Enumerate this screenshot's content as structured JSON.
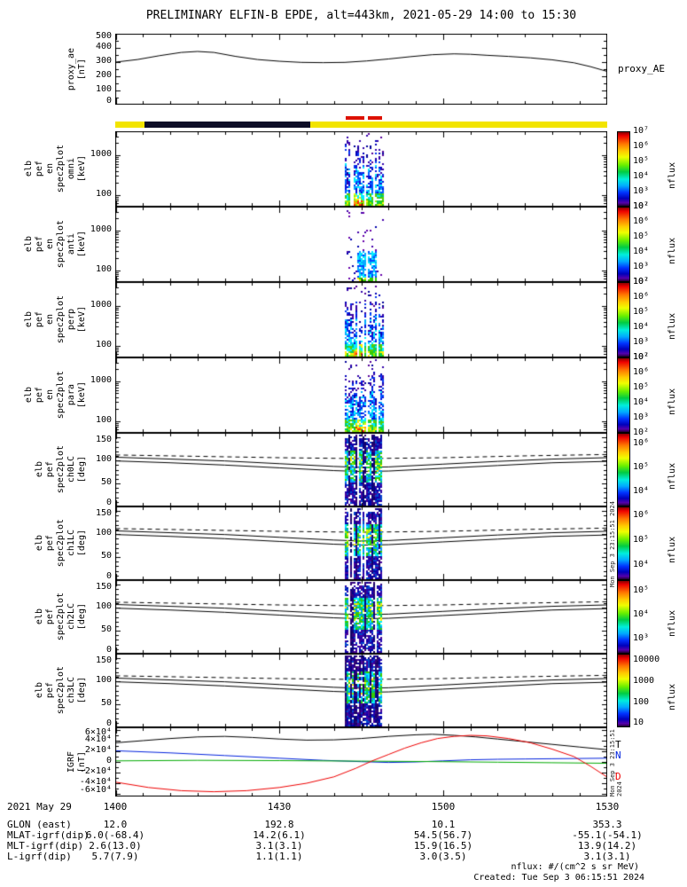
{
  "title": "PRELIMINARY ELFIN-B EPDE, alt=443km, 2021-05-29 14:00 to 15:30",
  "footer": {
    "nflux_units": "nflux: #/(cm^2 s sr MeV)",
    "created": "Created: Tue Sep  3 06:15:51 2024"
  },
  "side_timestamp": "Mon Sep  3 23:15:51 2024",
  "colors": {
    "sunlight": "#f2e400",
    "eclipse": "#0d0d26",
    "science_zone": "#dd1100",
    "axis": "#000000"
  },
  "status_bar": {
    "eclipse_start_min": 5.4,
    "eclipse_end_min": 35.7,
    "science_zones": [
      [
        42.2,
        45.6
      ],
      [
        46.2,
        48.8
      ]
    ]
  },
  "x_axis": {
    "date_label": "2021 May 29",
    "tick_labels": [
      "1400",
      "1430",
      "1500",
      "1530"
    ],
    "tick_minutes": [
      0,
      30,
      60,
      90
    ],
    "minutes_range": [
      0,
      90
    ]
  },
  "var_labels": {
    "rows": [
      {
        "label": "GLON (east)",
        "values": [
          "12.0",
          "192.8",
          "10.1",
          "353.3"
        ]
      },
      {
        "label": "MLAT-igrf(dip)",
        "values": [
          "6.0(-68.4)",
          "14.2(6.1)",
          "54.5(56.7)",
          "-55.1(-54.1)"
        ]
      },
      {
        "label": "MLT-igrf(dip)",
        "values": [
          "2.6(13.0)",
          "3.1(3.1)",
          "15.9(16.5)",
          "13.9(14.2)"
        ]
      },
      {
        "label": "L-igrf(dip)",
        "values": [
          "5.7(7.9)",
          "1.1(1.1)",
          "3.0(3.5)",
          "3.1(3.1)"
        ]
      }
    ]
  },
  "pitch_lines": {
    "dashed": {
      "x": [
        0,
        15,
        30,
        45,
        60,
        75,
        90
      ],
      "y": [
        112,
        109,
        106,
        104,
        106,
        110,
        113
      ]
    },
    "solid_upper": {
      "x": [
        0,
        10,
        20,
        30,
        40,
        45,
        50,
        60,
        70,
        80,
        90
      ],
      "y": [
        107,
        103,
        99,
        93,
        87,
        85,
        86,
        92,
        98,
        103,
        106
      ]
    },
    "solid_lower": {
      "x": [
        0,
        10,
        20,
        30,
        40,
        45,
        50,
        60,
        70,
        80,
        90
      ],
      "y": [
        99,
        95,
        90,
        84,
        78,
        76,
        77,
        83,
        89,
        95,
        98
      ]
    }
  },
  "chart_data": [
    {
      "id": "proxy_ae",
      "type": "line",
      "left_label": [
        "proxy_ae",
        "[nT]"
      ],
      "right_label": "proxy_AE",
      "yscale": "lin",
      "ylim": [
        0,
        500
      ],
      "yticks": [
        {
          "v": 500,
          "t": "500"
        },
        {
          "v": 400,
          "t": "400"
        },
        {
          "v": 300,
          "t": "300"
        },
        {
          "v": 200,
          "t": "200"
        },
        {
          "v": 100,
          "t": "100"
        },
        {
          "v": 0,
          "t": "0"
        }
      ],
      "yminor": [
        450,
        350,
        250,
        150,
        50
      ],
      "series": [
        {
          "name": "proxy_AE",
          "color": "#000000",
          "x": [
            0,
            4,
            8,
            12,
            15,
            18,
            22,
            26,
            30,
            34,
            38,
            42,
            46,
            50,
            54,
            58,
            62,
            65,
            68,
            72,
            76,
            80,
            84,
            87,
            90
          ],
          "y": [
            300,
            318,
            345,
            368,
            375,
            368,
            340,
            318,
            306,
            298,
            296,
            298,
            308,
            322,
            338,
            352,
            358,
            355,
            348,
            340,
            330,
            316,
            295,
            268,
            235
          ]
        }
      ]
    },
    {
      "id": "omni",
      "type": "energy_spec",
      "left_label": [
        "elb",
        "pef",
        "en",
        "spec2plot",
        "omni",
        "[keV]"
      ],
      "yscale": "log",
      "ylim": [
        50,
        4000
      ],
      "yticks": [
        {
          "v": 1000,
          "t": "1000"
        },
        {
          "v": 100,
          "t": "100"
        }
      ],
      "yminor": [
        60,
        70,
        80,
        90,
        200,
        300,
        400,
        500,
        600,
        700,
        800,
        900,
        2000,
        3000
      ],
      "colorbar": {
        "label": "nflux",
        "ticks": [
          "10⁷",
          "10⁶",
          "10⁵",
          "10⁴",
          "10³",
          "10²"
        ],
        "fracs": [
          0.0,
          0.2,
          0.4,
          0.6,
          0.8,
          1.0
        ]
      },
      "burst": {
        "style": "strong",
        "start_min": 42.0,
        "end_min": 49.0,
        "core_min": 44.3
      }
    },
    {
      "id": "anti",
      "type": "energy_spec",
      "left_label": [
        "elb",
        "pef",
        "en",
        "spec2plot",
        "anti",
        "[keV]"
      ],
      "yscale": "log",
      "ylim": [
        50,
        4000
      ],
      "yticks": [
        {
          "v": 1000,
          "t": "1000"
        },
        {
          "v": 100,
          "t": "100"
        }
      ],
      "yminor": [
        60,
        70,
        80,
        90,
        200,
        300,
        400,
        500,
        600,
        700,
        800,
        900,
        2000,
        3000
      ],
      "colorbar": {
        "label": "nflux",
        "ticks": [
          "10⁷",
          "10⁶",
          "10⁵",
          "10⁴",
          "10³",
          "10²"
        ],
        "fracs": [
          0.0,
          0.2,
          0.4,
          0.6,
          0.8,
          1.0
        ]
      },
      "burst": {
        "style": "sparse",
        "start_min": 42.0,
        "end_min": 49.0,
        "streak_mins": [
          44.8,
          46.9
        ]
      }
    },
    {
      "id": "perp",
      "type": "energy_spec",
      "left_label": [
        "elb",
        "pef",
        "en",
        "spec2plot",
        "perp",
        "[keV]"
      ],
      "yscale": "log",
      "ylim": [
        50,
        4000
      ],
      "yticks": [
        {
          "v": 1000,
          "t": "1000"
        },
        {
          "v": 100,
          "t": "100"
        }
      ],
      "yminor": [
        60,
        70,
        80,
        90,
        200,
        300,
        400,
        500,
        600,
        700,
        800,
        900,
        2000,
        3000
      ],
      "colorbar": {
        "label": "nflux",
        "ticks": [
          "10⁷",
          "10⁶",
          "10⁵",
          "10⁴",
          "10³",
          "10²"
        ],
        "fracs": [
          0.0,
          0.2,
          0.4,
          0.6,
          0.8,
          1.0
        ]
      },
      "burst": {
        "style": "strong",
        "start_min": 42.0,
        "end_min": 49.0,
        "core_min": 44.5
      }
    },
    {
      "id": "para",
      "type": "energy_spec",
      "left_label": [
        "elb",
        "pef",
        "en",
        "spec2plot",
        "para",
        "[keV]"
      ],
      "yscale": "log",
      "ylim": [
        50,
        4000
      ],
      "yticks": [
        {
          "v": 1000,
          "t": "1000"
        },
        {
          "v": 100,
          "t": "100"
        }
      ],
      "yminor": [
        60,
        70,
        80,
        90,
        200,
        300,
        400,
        500,
        600,
        700,
        800,
        900,
        2000,
        3000
      ],
      "colorbar": {
        "label": "nflux",
        "ticks": [
          "10⁷",
          "10⁶",
          "10⁵",
          "10⁴",
          "10³",
          "10²"
        ],
        "fracs": [
          0.0,
          0.2,
          0.4,
          0.6,
          0.8,
          1.0
        ]
      },
      "burst": {
        "style": "strong",
        "start_min": 42.0,
        "end_min": 49.0,
        "core_min": 44.6
      }
    },
    {
      "id": "ch0LC",
      "type": "pitch_spec",
      "left_label": [
        "elb",
        "pef",
        "spec2plot",
        "ch0LC",
        "[deg]"
      ],
      "yscale": "lin",
      "ylim": [
        0,
        160
      ],
      "yticks": [
        {
          "v": 150,
          "t": "150"
        },
        {
          "v": 100,
          "t": "100"
        },
        {
          "v": 50,
          "t": "50"
        },
        {
          "v": 0,
          "t": "0"
        }
      ],
      "yminor": [
        10,
        20,
        30,
        40,
        60,
        70,
        80,
        90,
        110,
        120,
        130,
        140
      ],
      "colorbar": {
        "label": "nflux",
        "ticks": [
          "10⁶",
          "10⁵",
          "10⁴"
        ],
        "fracs": [
          0.14,
          0.47,
          0.8
        ]
      },
      "burst": {
        "style": "pitch",
        "start_min": 42.0,
        "end_min": 48.5
      }
    },
    {
      "id": "ch1LC",
      "type": "pitch_spec",
      "left_label": [
        "elb",
        "pef",
        "spec2plot",
        "ch1LC",
        "[deg]"
      ],
      "yscale": "lin",
      "ylim": [
        0,
        160
      ],
      "yticks": [
        {
          "v": 150,
          "t": "150"
        },
        {
          "v": 100,
          "t": "100"
        },
        {
          "v": 50,
          "t": "50"
        },
        {
          "v": 0,
          "t": "0"
        }
      ],
      "yminor": [
        10,
        20,
        30,
        40,
        60,
        70,
        80,
        90,
        110,
        120,
        130,
        140
      ],
      "colorbar": {
        "label": "nflux",
        "ticks": [
          "10⁶",
          "10⁵",
          "10⁴"
        ],
        "fracs": [
          0.12,
          0.46,
          0.8
        ]
      },
      "burst": {
        "style": "pitch",
        "start_min": 42.0,
        "end_min": 48.5
      }
    },
    {
      "id": "ch2LC",
      "type": "pitch_spec",
      "left_label": [
        "elb",
        "pef",
        "spec2plot",
        "ch2LC",
        "[deg]"
      ],
      "yscale": "lin",
      "ylim": [
        0,
        160
      ],
      "yticks": [
        {
          "v": 150,
          "t": "150"
        },
        {
          "v": 100,
          "t": "100"
        },
        {
          "v": 50,
          "t": "50"
        },
        {
          "v": 0,
          "t": "0"
        }
      ],
      "yminor": [
        10,
        20,
        30,
        40,
        60,
        70,
        80,
        90,
        110,
        120,
        130,
        140
      ],
      "colorbar": {
        "label": "nflux",
        "ticks": [
          "10⁵",
          "10⁴",
          "10³"
        ],
        "fracs": [
          0.14,
          0.47,
          0.8
        ]
      },
      "burst": {
        "style": "pitch",
        "start_min": 42.0,
        "end_min": 48.5
      }
    },
    {
      "id": "ch3LC",
      "type": "pitch_spec",
      "left_label": [
        "elb",
        "pef",
        "spec2plot",
        "ch3LC",
        "[deg]"
      ],
      "yscale": "lin",
      "ylim": [
        0,
        160
      ],
      "yticks": [
        {
          "v": 150,
          "t": "150"
        },
        {
          "v": 100,
          "t": "100"
        },
        {
          "v": 50,
          "t": "50"
        },
        {
          "v": 0,
          "t": "0"
        }
      ],
      "yminor": [
        10,
        20,
        30,
        40,
        60,
        70,
        80,
        90,
        110,
        120,
        130,
        140
      ],
      "colorbar": {
        "label": "nflux",
        "ticks": [
          "10000",
          "1000",
          "100",
          "10"
        ],
        "fracs": [
          0.08,
          0.37,
          0.66,
          0.94
        ]
      },
      "burst": {
        "style": "pitch",
        "start_min": 42.0,
        "end_min": 48.5
      }
    },
    {
      "id": "igrf",
      "type": "multiline",
      "left_label": [
        "IGRF",
        "[nT]"
      ],
      "yscale": "lin",
      "ylim": [
        -65000,
        65000
      ],
      "yticks": [
        {
          "v": 60000,
          "t": "6×10⁴"
        },
        {
          "v": 40000,
          "t": "4×10⁴"
        },
        {
          "v": 20000,
          "t": "2×10⁴"
        },
        {
          "v": 0,
          "t": "0"
        },
        {
          "v": -20000,
          "t": "-2×10⁴"
        },
        {
          "v": -40000,
          "t": "-4×10⁴"
        },
        {
          "v": -60000,
          "t": "-6×10⁴"
        }
      ],
      "yminor": [
        -50000,
        -30000,
        -10000,
        10000,
        30000,
        50000
      ],
      "right_series_labels": [
        {
          "t": "T",
          "color": "#000000",
          "dy": 14
        },
        {
          "t": "N",
          "color": "#0022dd",
          "dy": 26
        },
        {
          "t": "D",
          "color": "#ee0000",
          "dy": 50
        }
      ],
      "series": [
        {
          "name": "T",
          "color": "#000000",
          "x": [
            0,
            5,
            10,
            15,
            20,
            25,
            30,
            35,
            40,
            45,
            50,
            55,
            58,
            62,
            66,
            70,
            75,
            80,
            85,
            90
          ],
          "y": [
            36000,
            40000,
            44000,
            47000,
            48000,
            46000,
            43000,
            41000,
            41500,
            44000,
            48000,
            51000,
            52000,
            50000,
            47000,
            43000,
            38000,
            33000,
            28000,
            23000
          ]
        },
        {
          "name": "N",
          "color": "#0022dd",
          "x": [
            0,
            10,
            20,
            30,
            38,
            45,
            50,
            55,
            60,
            65,
            70,
            75,
            80,
            85,
            90
          ],
          "y": [
            21000,
            17000,
            12000,
            7000,
            3000,
            500,
            -1000,
            0,
            2000,
            4000,
            5000,
            5500,
            6000,
            6500,
            7000
          ]
        },
        {
          "name": "E",
          "color": "#00aa00",
          "x": [
            0,
            15,
            30,
            45,
            60,
            70,
            80,
            90
          ],
          "y": [
            2000,
            3000,
            2500,
            1500,
            500,
            -500,
            -1500,
            -2500
          ]
        },
        {
          "name": "D",
          "color": "#ee0000",
          "x": [
            0,
            6,
            12,
            18,
            24,
            30,
            35,
            40,
            44,
            47,
            50,
            53,
            56,
            59,
            62,
            65,
            68,
            72,
            76,
            80,
            84,
            87,
            90
          ],
          "y": [
            -38000,
            -48000,
            -54000,
            -56000,
            -54000,
            -48000,
            -40000,
            -28000,
            -12000,
            2000,
            14000,
            26000,
            36000,
            44000,
            48000,
            50000,
            49000,
            44000,
            36000,
            24000,
            10000,
            -8000,
            -28000
          ]
        }
      ]
    }
  ]
}
